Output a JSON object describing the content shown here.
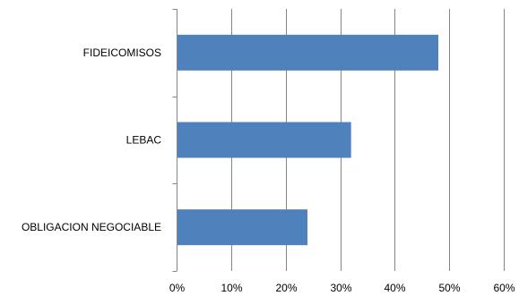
{
  "chart_data": {
    "type": "bar",
    "orientation": "horizontal",
    "categories": [
      "FIDEICOMISOS",
      "LEBAC",
      "OBLIGACION NEGOCIABLE"
    ],
    "values": [
      0.48,
      0.32,
      0.24
    ],
    "xlim": [
      0,
      0.6
    ],
    "x_ticks": [
      0,
      0.1,
      0.2,
      0.3,
      0.4,
      0.5,
      0.6
    ],
    "x_tick_labels": [
      "0%",
      "10%",
      "20%",
      "30%",
      "40%",
      "50%",
      "60%"
    ],
    "grid": "vertical",
    "legend": "none",
    "bar_color": "#4f81bd",
    "title": "",
    "xlabel": "",
    "ylabel": ""
  }
}
